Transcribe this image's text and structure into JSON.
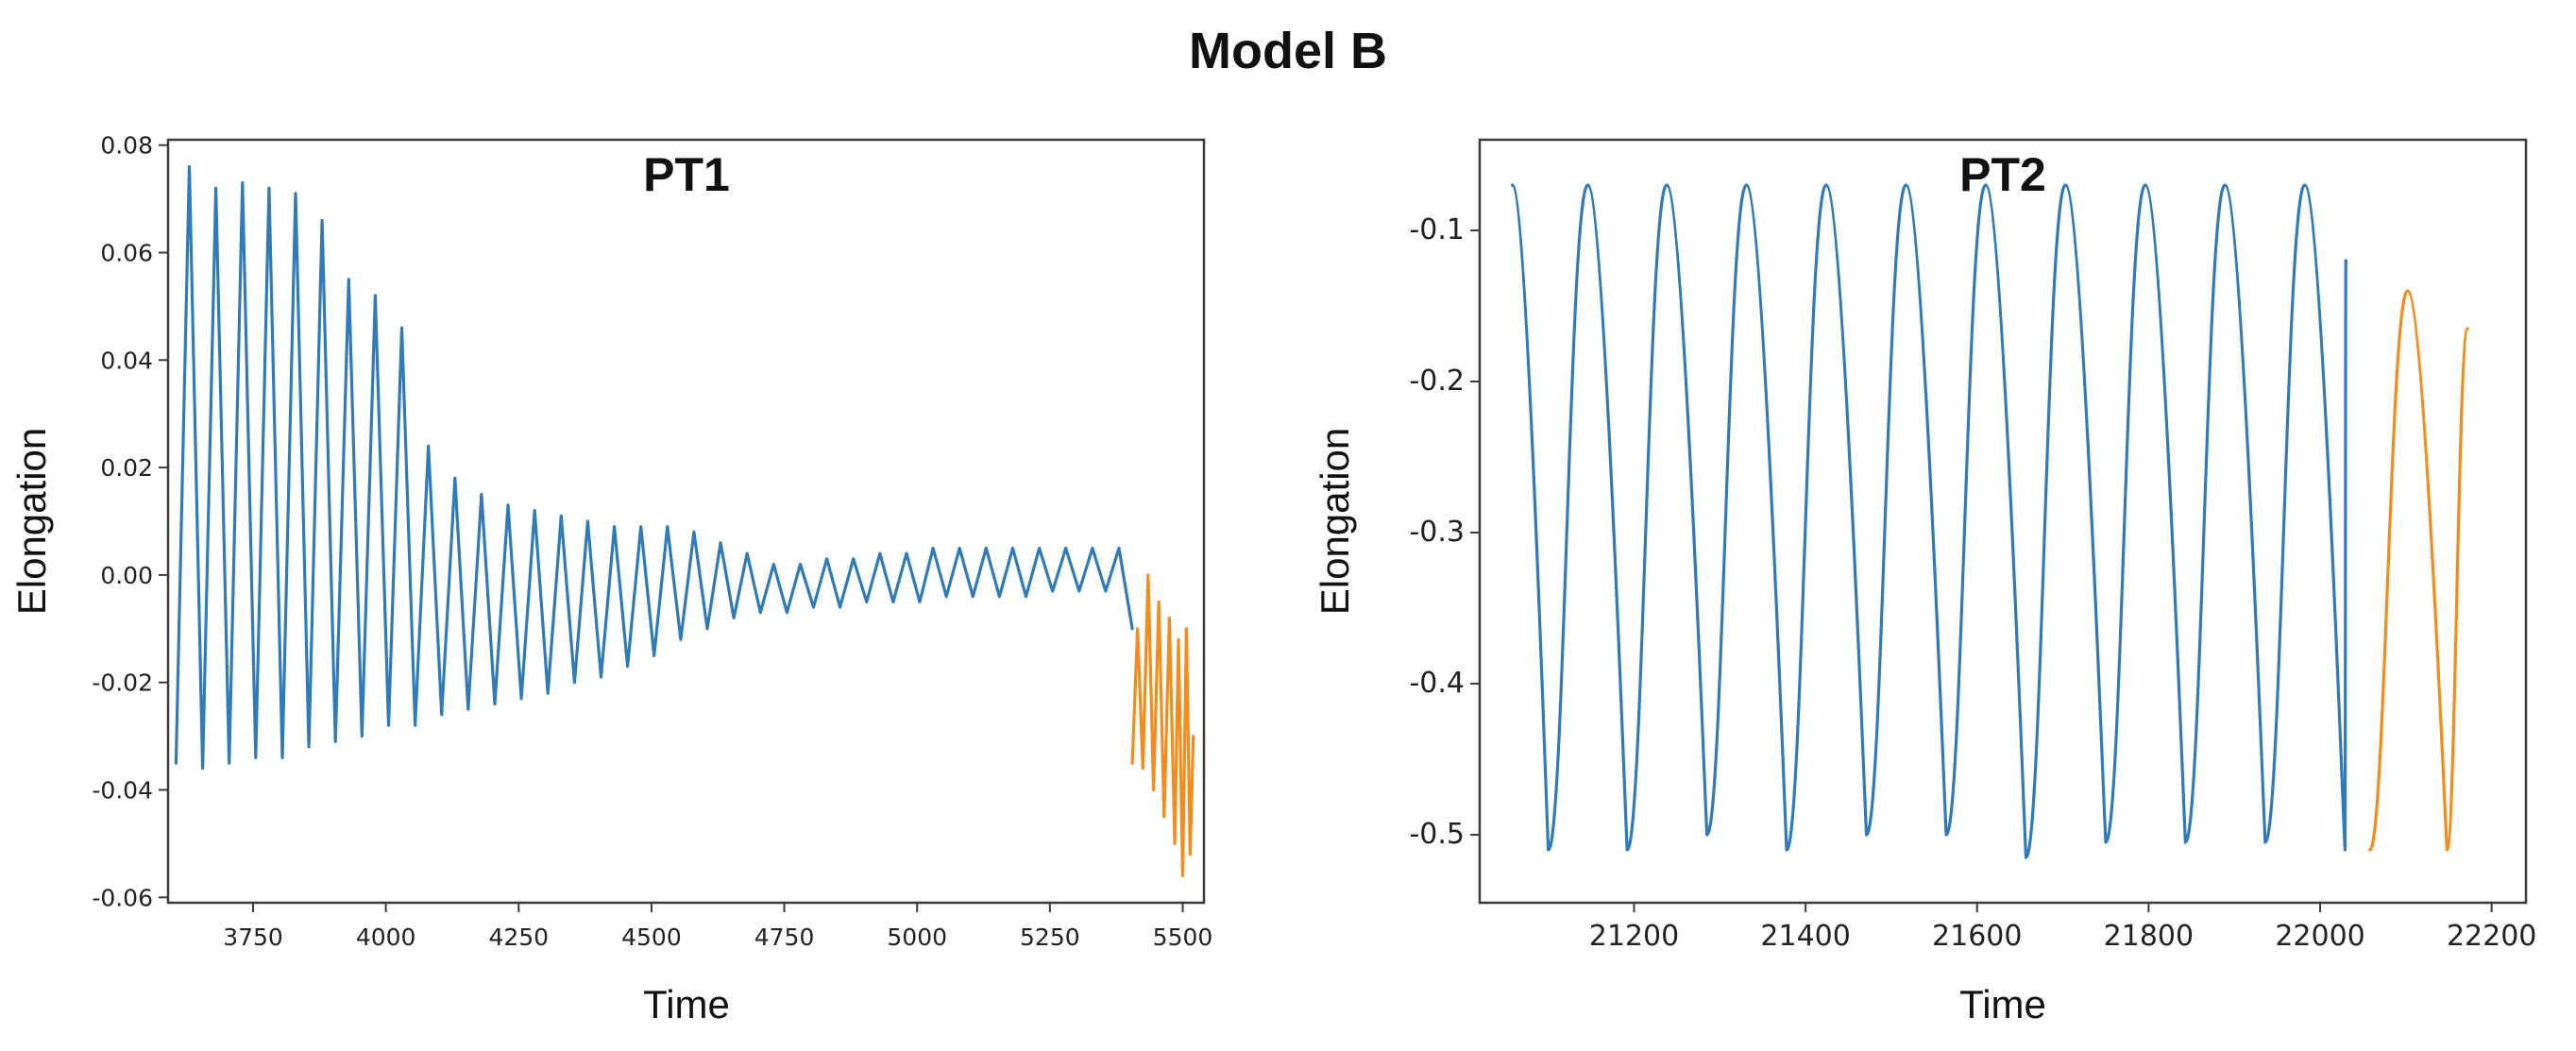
{
  "figure_title": "Model B",
  "colors": {
    "blue": "#2f7ab8",
    "orange": "#f28c1c"
  },
  "chart_data": [
    {
      "type": "line",
      "title": "PT1",
      "xlabel": "Time",
      "ylabel": "Elongation",
      "xlim": [
        3590,
        5540
      ],
      "ylim": [
        -0.061,
        0.081
      ],
      "xticks": [
        3750,
        4000,
        4250,
        4500,
        4750,
        5000,
        5250,
        5500
      ],
      "yticks": [
        -0.06,
        -0.04,
        -0.02,
        0.0,
        0.02,
        0.04,
        0.06,
        0.08
      ],
      "xtick_labels": [
        "3750",
        "4000",
        "4250",
        "4500",
        "4750",
        "5000",
        "5250",
        "5500"
      ],
      "ytick_labels": [
        "-0.06",
        "-0.04",
        "-0.02",
        "0.00",
        "0.02",
        "0.04",
        "0.06",
        "0.08"
      ],
      "grid": false,
      "series": [
        {
          "color": "#2f7ab8",
          "x": [
            3605,
            3630,
            3655,
            3680,
            3705,
            3730,
            3755,
            3780,
            3805,
            3830,
            3855,
            3880,
            3905,
            3930,
            3955,
            3980,
            4005,
            4030,
            4055,
            4080,
            4105,
            4130,
            4155,
            4180,
            4205,
            4230,
            4255,
            4280,
            4305,
            4330,
            4355,
            4380,
            4405,
            4430,
            4455,
            4480,
            4505,
            4530,
            4555,
            4580,
            4605,
            4630,
            4655,
            4680,
            4705,
            4730,
            4755,
            4780,
            4805,
            4830,
            4855,
            4880,
            4905,
            4930,
            4955,
            4980,
            5005,
            5030,
            5055,
            5080,
            5105,
            5130,
            5155,
            5180,
            5205,
            5230,
            5255,
            5280,
            5305,
            5330,
            5355,
            5380,
            5405
          ],
          "y": [
            -0.035,
            0.076,
            -0.036,
            0.072,
            -0.035,
            0.073,
            -0.034,
            0.072,
            -0.034,
            0.071,
            -0.032,
            0.066,
            -0.031,
            0.055,
            -0.03,
            0.052,
            -0.028,
            0.046,
            -0.028,
            0.024,
            -0.026,
            0.018,
            -0.025,
            0.015,
            -0.024,
            0.013,
            -0.023,
            0.012,
            -0.022,
            0.011,
            -0.02,
            0.01,
            -0.019,
            0.009,
            -0.017,
            0.009,
            -0.015,
            0.009,
            -0.012,
            0.008,
            -0.01,
            0.006,
            -0.008,
            0.004,
            -0.007,
            0.002,
            -0.007,
            0.002,
            -0.006,
            0.003,
            -0.006,
            0.003,
            -0.005,
            0.004,
            -0.005,
            0.004,
            -0.005,
            0.005,
            -0.004,
            0.005,
            -0.004,
            0.005,
            -0.004,
            0.005,
            -0.004,
            0.005,
            -0.003,
            0.005,
            -0.003,
            0.005,
            -0.003,
            0.005,
            -0.01
          ]
        },
        {
          "color": "#f28c1c",
          "x": [
            5405,
            5415,
            5425,
            5435,
            5445,
            5455,
            5465,
            5475,
            5485,
            5492,
            5500,
            5507,
            5514,
            5520
          ],
          "y": [
            -0.035,
            -0.01,
            -0.036,
            0.0,
            -0.04,
            -0.005,
            -0.045,
            -0.008,
            -0.05,
            -0.012,
            -0.056,
            -0.01,
            -0.052,
            -0.03
          ]
        }
      ]
    },
    {
      "type": "line",
      "title": "PT2",
      "xlabel": "Time",
      "ylabel": "Elongation",
      "xlim": [
        21020,
        22240
      ],
      "ylim": [
        -0.545,
        -0.04
      ],
      "xticks": [
        21200,
        21400,
        21600,
        21800,
        22000,
        22200
      ],
      "yticks": [
        -0.5,
        -0.4,
        -0.3,
        -0.2,
        -0.1
      ],
      "xtick_labels": [
        "21200",
        "21400",
        "21600",
        "21800",
        "22000",
        "22200"
      ],
      "ytick_labels": [
        "-0.5",
        "-0.4",
        "-0.3",
        "-0.2",
        "-0.1"
      ],
      "grid": false,
      "series": [
        {
          "color": "#2f7ab8",
          "peaks_x": [
            21058,
            21146,
            21238,
            21331,
            21424,
            21517,
            21610,
            21703,
            21796,
            21889,
            21982,
            22030
          ],
          "peaks_y": [
            -0.07,
            -0.07,
            -0.07,
            -0.07,
            -0.07,
            -0.07,
            -0.07,
            -0.07,
            -0.07,
            -0.07,
            -0.07,
            -0.12
          ],
          "troughs_x": [
            21100,
            21192,
            21285,
            21378,
            21471,
            21564,
            21657,
            21750,
            21843,
            21936,
            22029
          ],
          "troughs_y": [
            -0.51,
            -0.51,
            -0.5,
            -0.51,
            -0.5,
            -0.5,
            -0.515,
            -0.505,
            -0.505,
            -0.505,
            -0.51
          ]
        },
        {
          "color": "#f28c1c",
          "peaks_x": [
            22102,
            22172
          ],
          "peaks_y": [
            -0.14,
            -0.165
          ],
          "troughs_x": [
            22058,
            22148
          ],
          "troughs_y": [
            -0.51,
            -0.51
          ]
        }
      ]
    }
  ]
}
